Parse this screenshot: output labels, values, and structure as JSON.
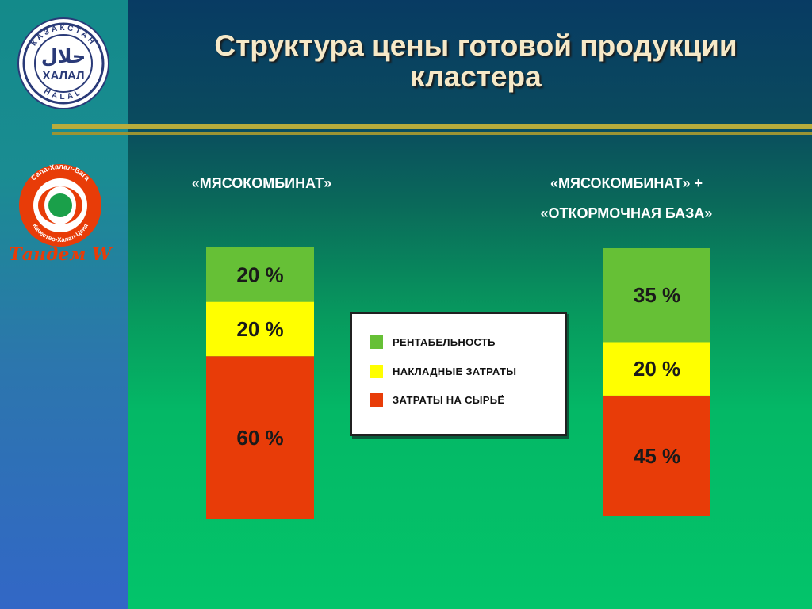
{
  "title": {
    "line1": "Структура цены готовой продукции",
    "line2": "кластера"
  },
  "columns": {
    "left": "«МЯСОКОМБИНАТ»",
    "right_line1": "«МЯСОКОМБИНАТ»  +",
    "right_line2": "«ОТКОРМОЧНАЯ БАЗА»"
  },
  "legend": [
    {
      "label": "РЕНТАБЕЛЬНОСТЬ",
      "color": "#66c036"
    },
    {
      "label": "НАКЛАДНЫЕ ЗАТРАТЫ",
      "color": "#ffff00"
    },
    {
      "label": "ЗАТРАТЫ НА СЫРЬЁ",
      "color": "#e83c08"
    }
  ],
  "logos": {
    "kazakhstan_halal": {
      "ring_text": "КАЗАКСТАН",
      "ring_text_bottom": "HALAL",
      "arabic": "حلال",
      "center": "ХАЛАЛ"
    },
    "tandem": {
      "ring_top": "Сапа-Халал-Бага",
      "ring_bottom": "Качество-Халал-Цена",
      "brand": "Тандем W"
    }
  },
  "chart_data": {
    "type": "bar",
    "stacked": true,
    "unit": "%",
    "categories": [
      "«МЯСОКОМБИНАТ»",
      "«МЯСОКОМБИНАТ» + «ОТКОРМОЧНАЯ БАЗА»"
    ],
    "series": [
      {
        "name": "ЗАТРАТЫ НА СЫРЬЁ",
        "color": "#e83c08",
        "values": [
          60,
          45
        ]
      },
      {
        "name": "НАКЛАДНЫЕ ЗАТРАТЫ",
        "color": "#ffff00",
        "values": [
          20,
          20
        ]
      },
      {
        "name": "РЕНТАБЕЛЬНОСТЬ",
        "color": "#66c036",
        "values": [
          20,
          35
        ]
      }
    ],
    "data_labels": [
      [
        "60 %",
        "20 %",
        "20 %"
      ],
      [
        "45 %",
        "20 %",
        "35 %"
      ]
    ],
    "ylim": [
      0,
      100
    ],
    "grid": false,
    "legend_position": "center"
  }
}
